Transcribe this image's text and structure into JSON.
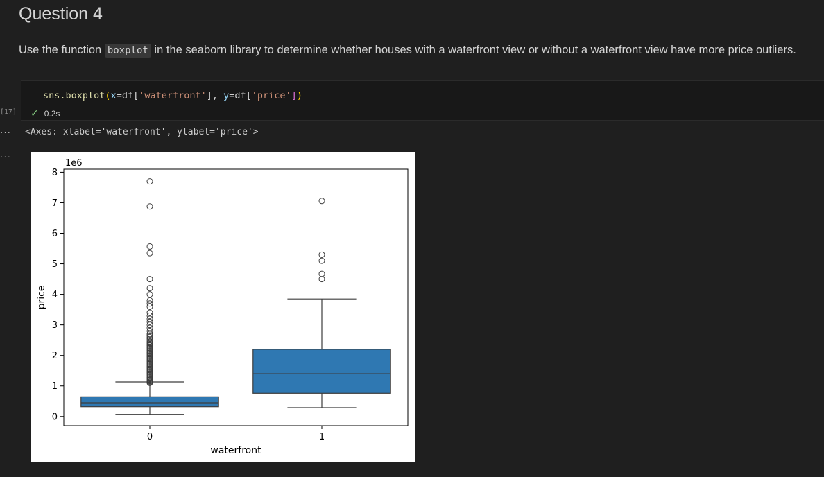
{
  "heading": "Question 4",
  "instruction": {
    "before": "Use the function ",
    "code": "boxplot",
    "after": " in the seaborn library to determine whether houses with a waterfront view or without a waterfront view have more price outliers."
  },
  "cell": {
    "code_tokens": {
      "call": "sns.boxplot",
      "open": "(",
      "x_kw": "x",
      "eq1": "=df[",
      "x_str": "'waterfront'",
      "mid": "], ",
      "y_kw": "y",
      "eq2": "=df[",
      "y_str": "'price'",
      "close_br": "]",
      "close": ")"
    },
    "execution_count": "[17]",
    "duration": "0.2s",
    "status_icon": "check-icon"
  },
  "output": {
    "more_glyph": "···",
    "text": "<Axes: xlabel='waterfront', ylabel='price'>"
  },
  "chart_data": {
    "type": "box",
    "xlabel": "waterfront",
    "ylabel": "price",
    "offset_text": "1e6",
    "categories": [
      "0",
      "1"
    ],
    "ylim": [
      -0.3,
      8.1
    ],
    "y_ticks": [
      0,
      1,
      2,
      3,
      4,
      5,
      6,
      7,
      8
    ],
    "box_color": "#2f78b2",
    "boxes": [
      {
        "category": "0",
        "whisker_low": 0.07,
        "q1": 0.32,
        "median": 0.45,
        "q3": 0.645,
        "whisker_high": 1.13,
        "outliers": [
          1.1,
          1.13,
          1.16,
          1.2,
          1.24,
          1.28,
          1.32,
          1.36,
          1.4,
          1.44,
          1.48,
          1.52,
          1.56,
          1.6,
          1.64,
          1.68,
          1.72,
          1.76,
          1.8,
          1.84,
          1.88,
          1.92,
          1.96,
          2.0,
          2.04,
          2.08,
          2.12,
          2.16,
          2.2,
          2.24,
          2.28,
          2.32,
          2.36,
          2.4,
          2.45,
          2.5,
          2.55,
          2.6,
          2.65,
          2.7,
          2.8,
          2.9,
          3.0,
          3.1,
          3.2,
          3.3,
          3.4,
          3.6,
          3.7,
          3.8,
          4.0,
          4.2,
          4.5,
          5.35,
          5.57,
          6.88,
          7.7
        ]
      },
      {
        "category": "1",
        "whisker_low": 0.29,
        "q1": 0.76,
        "median": 1.4,
        "q3": 2.2,
        "whisker_high": 3.85,
        "outliers": [
          4.5,
          4.67,
          5.1,
          5.3,
          7.06
        ]
      }
    ]
  }
}
